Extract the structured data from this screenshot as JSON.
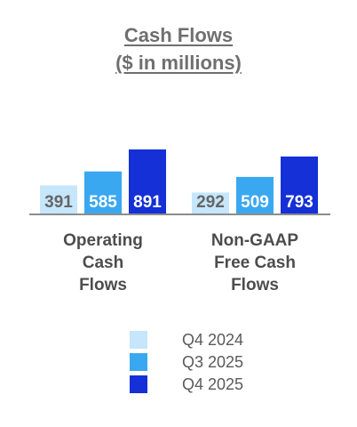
{
  "chart_data": {
    "type": "bar",
    "title": "Cash Flows",
    "subtitle": "($ in millions)",
    "categories": [
      [
        "Operating",
        "Cash",
        "Flows"
      ],
      [
        "Non-GAAP",
        "Free Cash",
        "Flows"
      ]
    ],
    "series": [
      {
        "name": "Q4 2024",
        "values": [
          391,
          292
        ],
        "color": "#c5e6fb",
        "label_color": "#666666"
      },
      {
        "name": "Q3 2025",
        "values": [
          585,
          509
        ],
        "color": "#3aa8f0",
        "label_color": "#ffffff"
      },
      {
        "name": "Q4 2025",
        "values": [
          891,
          793
        ],
        "color": "#1430d6",
        "label_color": "#ffffff"
      }
    ],
    "ylim": [
      0,
      891
    ],
    "grid": false,
    "legend": "bottom",
    "xlabel": "",
    "ylabel": ""
  }
}
